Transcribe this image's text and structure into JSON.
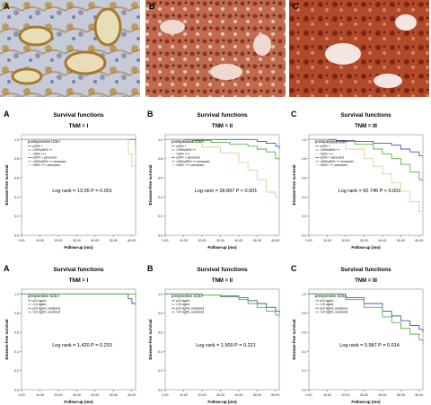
{
  "chart_data": {
    "type": "line",
    "photo_panels": [
      {
        "letter": "A",
        "tone": "weak"
      },
      {
        "letter": "B",
        "tone": "moderate"
      },
      {
        "letter": "C",
        "tone": "strong"
      }
    ],
    "axes_text": {
      "xlabel": "Follow-up (mo)",
      "ylabel": "Disease-free survival",
      "xticks": [
        "0.00",
        "10.00",
        "20.00",
        "30.00",
        "40.00",
        "50.00",
        "60.00"
      ],
      "yticks": [
        "0.0",
        "0.2",
        "0.4",
        "0.6",
        "0.8",
        "1.0"
      ]
    },
    "xlim": [
      0,
      62
    ],
    "ylim": [
      0,
      1.05
    ],
    "rows": [
      {
        "legend_title": "postoperative tCEA",
        "legend_items": [
          "≤20%  +",
          ">20%≤50%  ++",
          ">50%  +++",
          "≤20%  +-censored",
          ">20%≤50%  ++-censored",
          ">50%  +++-censored"
        ],
        "colors": [
          "#4a5aa8",
          "#5bb04a",
          "#d8cf93"
        ],
        "panels": [
          {
            "letter": "A",
            "title": "Survival functions",
            "subtitle": "TNM = I",
            "log_rank": "Log rank = 13.95 P = 0.001",
            "series": [
              {
                "x": [
                  0,
                  62
                ],
                "y": [
                  1.0,
                  1.0
                ]
              },
              {
                "x": [
                  0,
                  60,
                  62
                ],
                "y": [
                  1.0,
                  1.0,
                  0.93
                ]
              },
              {
                "x": [
                  0,
                  56,
                  58,
                  60,
                  62
                ],
                "y": [
                  1.0,
                  1.0,
                  0.85,
                  0.72,
                  0.72
                ]
              }
            ]
          },
          {
            "letter": "B",
            "title": "Survival functions",
            "subtitle": "TNM = II",
            "log_rank": "Log rank = 28.897 P < 0.001",
            "series": [
              {
                "x": [
                  0,
                  40,
                  50,
                  55,
                  60,
                  62
                ],
                "y": [
                  1.0,
                  1.0,
                  0.98,
                  0.96,
                  0.93,
                  0.9
                ]
              },
              {
                "x": [
                  0,
                  15,
                  25,
                  35,
                  45,
                  50,
                  55,
                  60,
                  62
                ],
                "y": [
                  1.0,
                  0.99,
                  0.97,
                  0.95,
                  0.93,
                  0.9,
                  0.87,
                  0.8,
                  0.78
                ]
              },
              {
                "x": [
                  0,
                  10,
                  20,
                  30,
                  40,
                  45,
                  50,
                  55,
                  60,
                  62
                ],
                "y": [
                  1.0,
                  0.97,
                  0.92,
                  0.86,
                  0.76,
                  0.68,
                  0.58,
                  0.45,
                  0.4,
                  0.4
                ]
              }
            ]
          },
          {
            "letter": "C",
            "title": "Survival functions",
            "subtitle": "TNM = III",
            "log_rank": "Log rank = 82.745 P < 0.001",
            "series": [
              {
                "x": [
                  0,
                  15,
                  25,
                  35,
                  45,
                  50,
                  55,
                  60,
                  62
                ],
                "y": [
                  1.0,
                  0.99,
                  0.98,
                  0.96,
                  0.94,
                  0.9,
                  0.87,
                  0.83,
                  0.83
                ]
              },
              {
                "x": [
                  0,
                  15,
                  25,
                  35,
                  40,
                  45,
                  50,
                  55,
                  60,
                  62
                ],
                "y": [
                  1.0,
                  0.98,
                  0.95,
                  0.9,
                  0.85,
                  0.8,
                  0.74,
                  0.66,
                  0.58,
                  0.57
                ]
              },
              {
                "x": [
                  0,
                  10,
                  20,
                  30,
                  35,
                  40,
                  45,
                  50,
                  55,
                  60,
                  62
                ],
                "y": [
                  1.0,
                  0.96,
                  0.9,
                  0.8,
                  0.72,
                  0.64,
                  0.55,
                  0.46,
                  0.35,
                  0.25,
                  0.22
                ]
              }
            ]
          }
        ]
      },
      {
        "legend_title": "preoperative sCEA",
        "legend_items": [
          "≤10 ng/mL",
          ">10 ng/mL",
          "≤10 ng/mL-censored",
          ">10 ng/mL-censored"
        ],
        "colors": [
          "#4a5aa8",
          "#5bb04a"
        ],
        "panels": [
          {
            "letter": "A",
            "title": "Survival functions",
            "subtitle": "TNM = I",
            "log_rank": "Log rank = 1.420 P = 0.233",
            "series": [
              {
                "x": [
                  0,
                  55,
                  58,
                  60,
                  62
                ],
                "y": [
                  1.0,
                  1.0,
                  0.95,
                  0.9,
                  0.9
                ]
              },
              {
                "x": [
                  0,
                  57,
                  62
                ],
                "y": [
                  1.0,
                  1.0,
                  0.96
                ]
              }
            ]
          },
          {
            "letter": "B",
            "title": "Survival functions",
            "subtitle": "TNM = II",
            "log_rank": "Log rank = 1.500 P = 0.221",
            "series": [
              {
                "x": [
                  0,
                  20,
                  30,
                  40,
                  45,
                  50,
                  55,
                  60,
                  62
                ],
                "y": [
                  1.0,
                  0.99,
                  0.98,
                  0.96,
                  0.93,
                  0.9,
                  0.86,
                  0.82,
                  0.8
                ]
              },
              {
                "x": [
                  0,
                  20,
                  30,
                  40,
                  45,
                  50,
                  55,
                  60,
                  62
                ],
                "y": [
                  1.0,
                  0.99,
                  0.97,
                  0.94,
                  0.9,
                  0.86,
                  0.82,
                  0.78,
                  0.76
                ]
              }
            ]
          },
          {
            "letter": "C",
            "title": "Survival functions",
            "subtitle": "TNM = III",
            "log_rank": "Log rank = 5.987 P = 0.014",
            "series": [
              {
                "x": [
                  0,
                  20,
                  30,
                  40,
                  45,
                  50,
                  55,
                  60,
                  62
                ],
                "y": [
                  1.0,
                  0.96,
                  0.9,
                  0.82,
                  0.77,
                  0.72,
                  0.67,
                  0.63,
                  0.6
                ]
              },
              {
                "x": [
                  0,
                  20,
                  30,
                  40,
                  45,
                  50,
                  55,
                  60,
                  62
                ],
                "y": [
                  1.0,
                  0.94,
                  0.86,
                  0.76,
                  0.7,
                  0.64,
                  0.58,
                  0.52,
                  0.48
                ]
              }
            ]
          }
        ]
      }
    ]
  }
}
